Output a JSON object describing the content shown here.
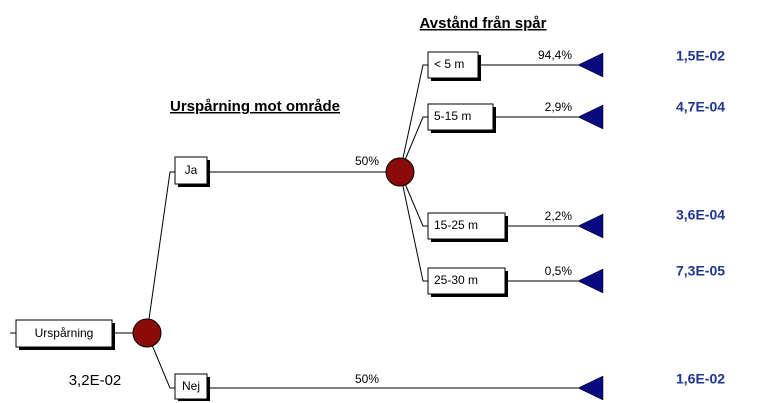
{
  "headers": [
    "Urspårning mot område",
    "Avstånd från spår"
  ],
  "root": {
    "label": "Urspårning",
    "value": "3,2E-02"
  },
  "branches": [
    {
      "label": "Ja",
      "probability": "50%",
      "branches": [
        {
          "label": "< 5 m",
          "probability": "94,4%",
          "result": "1,5E-02"
        },
        {
          "label": "5-15 m",
          "probability": "2,9%",
          "result": "4,7E-04"
        },
        {
          "label": "15-25 m",
          "probability": "2,2%",
          "result": "3,6E-04"
        },
        {
          "label": "25-30 m",
          "probability": "0,5%",
          "result": "7,3E-05"
        }
      ]
    },
    {
      "label": "Nej",
      "probability": "50%",
      "result": "1,6E-02"
    }
  ]
}
